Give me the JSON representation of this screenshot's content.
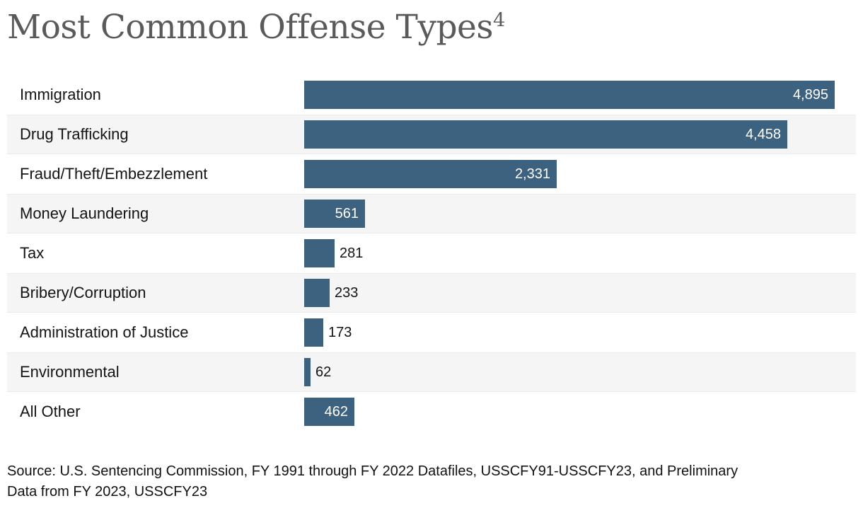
{
  "header": {
    "title": "Most Common Offense Types",
    "footnote_marker": "4"
  },
  "chart_data": {
    "type": "bar",
    "orientation": "horizontal",
    "title": "Most Common Offense Types",
    "title_footnote": "4",
    "categories": [
      "Immigration",
      "Drug Trafficking",
      "Fraud/Theft/Embezzlement",
      "Money Laundering",
      "Tax",
      "Bribery/Corruption",
      "Administration of Justice",
      "Environmental",
      "All Other"
    ],
    "values": [
      4895,
      4458,
      2331,
      561,
      281,
      233,
      173,
      62,
      462
    ],
    "value_labels": [
      "4,895",
      "4,458",
      "2,331",
      "561",
      "281",
      "233",
      "173",
      "62",
      "462"
    ],
    "xlabel": "",
    "ylabel": "",
    "xlim": [
      0,
      4895
    ],
    "grid": false,
    "legend": false,
    "bar_color": "#3d627f",
    "row_stripe_color": "#f5f5f5",
    "inside_value_color": "#ffffff",
    "outside_value_color": "#141414"
  },
  "footer": {
    "source_line1": "Source: U.S. Sentencing Commission, FY 1991 through FY 2022 Datafiles, USSCFY91-USSCFY23, and Preliminary",
    "source_line2": "Data from FY 2023, USSCFY23"
  }
}
